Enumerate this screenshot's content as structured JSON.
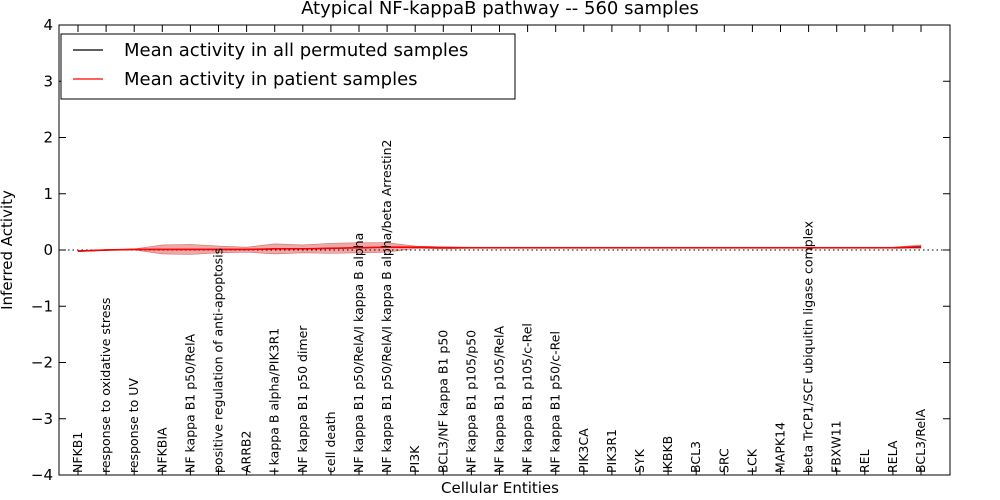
{
  "chart_data": {
    "type": "line",
    "title": "Atypical NF-kappaB pathway -- 560 samples",
    "xlabel": "Cellular Entities",
    "ylabel": "Inferred Activity",
    "ylim": [
      -4,
      4
    ],
    "yticks": [
      -4,
      -3,
      -2,
      -1,
      0,
      1,
      2,
      3,
      4
    ],
    "ytick_labels": [
      "−4",
      "−3",
      "−2",
      "−1",
      "0",
      "1",
      "2",
      "3",
      "4"
    ],
    "grid": false,
    "legend_position": "top-left",
    "categories": [
      "NFKB1",
      "response to oxidative stress",
      "response to UV",
      "NFKBIA",
      "NF kappa B1 p50/RelA",
      "positive regulation of anti-apoptosis",
      "ARRB2",
      "I kappa B alpha/PIK3R1",
      "NF kappa B1 p50 dimer",
      "cell death",
      "NF kappa B1 p50/RelA/I kappa B alpha",
      "NF kappa B1 p50/RelA/I kappa B alpha/beta Arrestin2",
      "PI3K",
      "BCL3/NF kappa B1 p50",
      "NF kappa B1 p105/p50",
      "NF kappa B1 p105/RelA",
      "NF kappa B1 p105/c-Rel",
      "NF kappa B1 p50/c-Rel",
      "PIK3CA",
      "PIK3R1",
      "SYK",
      "IKBKB",
      "BCL3",
      "SRC",
      "LCK",
      "MAPK14",
      "beta TrCP1/SCF ubiquitin ligase complex",
      "FBXW11",
      "REL",
      "RELA",
      "BCL3/RelA"
    ],
    "series": [
      {
        "name": "Mean activity in all permuted samples",
        "color": "#000000",
        "style": "solid",
        "values": [
          -0.02,
          0.0,
          0.01,
          0.01,
          0.01,
          0.01,
          0.01,
          0.02,
          0.02,
          0.03,
          0.04,
          0.05,
          0.05,
          0.04,
          0.04,
          0.04,
          0.04,
          0.04,
          0.04,
          0.04,
          0.04,
          0.04,
          0.04,
          0.04,
          0.04,
          0.04,
          0.04,
          0.04,
          0.04,
          0.04,
          0.05
        ]
      },
      {
        "name": "Mean activity in patient samples",
        "color": "#ff0000",
        "style": "solid",
        "values": [
          -0.02,
          0.0,
          0.01,
          0.01,
          0.01,
          0.01,
          0.01,
          0.02,
          0.02,
          0.03,
          0.04,
          0.05,
          0.05,
          0.04,
          0.04,
          0.04,
          0.04,
          0.04,
          0.04,
          0.04,
          0.04,
          0.04,
          0.04,
          0.04,
          0.04,
          0.04,
          0.04,
          0.04,
          0.04,
          0.04,
          0.06
        ],
        "band_upper": [
          -0.01,
          0.01,
          0.02,
          0.09,
          0.1,
          0.07,
          0.05,
          0.11,
          0.09,
          0.12,
          0.13,
          0.13,
          0.07,
          0.06,
          0.05,
          0.05,
          0.05,
          0.05,
          0.05,
          0.05,
          0.05,
          0.05,
          0.05,
          0.05,
          0.05,
          0.05,
          0.05,
          0.05,
          0.05,
          0.05,
          0.09
        ],
        "band_lower": [
          -0.03,
          -0.01,
          -0.0,
          -0.07,
          -0.08,
          -0.05,
          -0.04,
          -0.07,
          -0.05,
          -0.06,
          -0.05,
          -0.04,
          0.03,
          0.02,
          0.03,
          0.03,
          0.03,
          0.03,
          0.03,
          0.03,
          0.03,
          0.03,
          0.03,
          0.03,
          0.03,
          0.03,
          0.03,
          0.03,
          0.03,
          0.03,
          0.03
        ]
      }
    ],
    "reference_line": {
      "y": 0,
      "style": "dotted",
      "color": "#000000"
    }
  }
}
